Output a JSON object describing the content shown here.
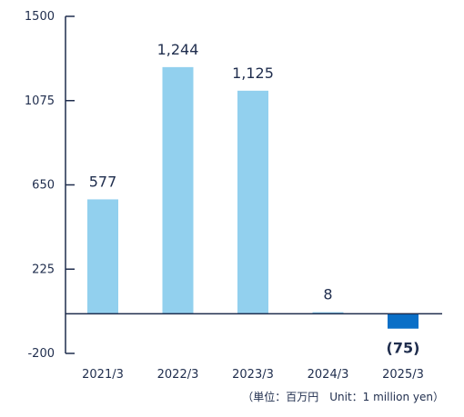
{
  "chart_data": {
    "type": "bar",
    "categories": [
      "2021/3",
      "2022/3",
      "2023/3",
      "2024/3",
      "2025/3"
    ],
    "values": [
      577,
      1244,
      1125,
      8,
      -75
    ],
    "value_labels": [
      "577",
      "1,244",
      "1,125",
      "8",
      "(75)"
    ],
    "yticks": [
      1500,
      1075,
      650,
      225,
      -200
    ],
    "ylim": [
      -200,
      1500
    ],
    "grid": false,
    "title": "",
    "xlabel": "",
    "ylabel": "",
    "colors": {
      "bar": "#92d0ee",
      "bar_latest": "#0a6fc7",
      "axis": "#1f2d4d",
      "text": "#1f2d4d"
    }
  },
  "unit_note": "（単位：百万円　Unit：1 million yen）"
}
